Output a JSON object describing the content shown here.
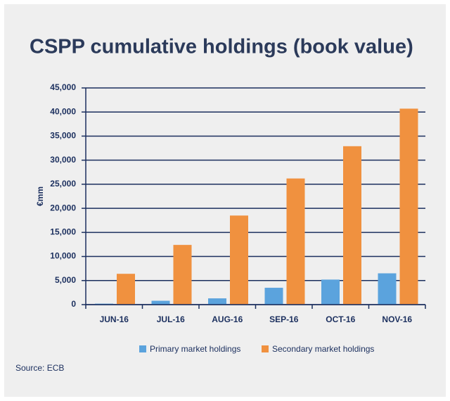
{
  "chart_data": {
    "type": "bar",
    "title": "CSPP cumulative holdings (book value)",
    "ylabel": "€mm",
    "categories": [
      "JUN-16",
      "JUL-16",
      "AUG-16",
      "SEP-16",
      "OCT-16",
      "NOV-16"
    ],
    "series": [
      {
        "name": "Primary market holdings",
        "color": "#5ba3dd",
        "values": [
          200,
          800,
          1300,
          3500,
          5200,
          6500
        ]
      },
      {
        "name": "Secondary market holdings",
        "color": "#f0913f",
        "values": [
          6400,
          12400,
          18500,
          26200,
          32900,
          40700
        ]
      }
    ],
    "ylim": [
      0,
      45000
    ],
    "yticks": [
      0,
      {
        "value": 5000,
        "label": "5,000"
      },
      {
        "value": 10000,
        "label": "10,000"
      },
      {
        "value": 15000,
        "label": "15,000"
      },
      {
        "value": 20000,
        "label": "20,000"
      },
      {
        "value": 25000,
        "label": "25,000"
      },
      {
        "value": 30000,
        "label": "30,000"
      },
      {
        "value": 35000,
        "label": "35,000"
      },
      {
        "value": 40000,
        "label": "40,000"
      },
      {
        "value": 45000,
        "label": "45,000"
      }
    ],
    "grid": true,
    "legend": "bottom",
    "source": "Source: ECB"
  }
}
